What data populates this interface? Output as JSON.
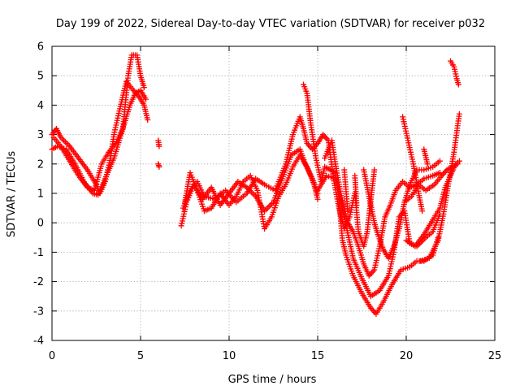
{
  "chart_data": {
    "type": "scatter",
    "title": "Day 199 of 2022, Sidereal Day-to-day VTEC variation (SDTVAR) for receiver p032",
    "xlabel": "GPS time / hours",
    "ylabel": "SDTVAR / TECUs",
    "xlim": [
      0,
      25
    ],
    "ylim": [
      -4,
      6
    ],
    "xticks": [
      "0",
      "5",
      "10",
      "15",
      "20",
      "25"
    ],
    "yticks": [
      "-4",
      "-3",
      "-2",
      "-1",
      "0",
      "1",
      "2",
      "3",
      "4",
      "5",
      "6"
    ],
    "grid": true,
    "marker": "+",
    "color": "#ff0000",
    "traces": [
      [
        [
          0.0,
          3.0
        ],
        [
          0.25,
          3.2
        ],
        [
          0.5,
          2.9
        ],
        [
          1.0,
          2.6
        ],
        [
          1.5,
          2.2
        ],
        [
          2.0,
          1.8
        ],
        [
          2.5,
          1.3
        ],
        [
          2.7,
          1.0
        ],
        [
          3.0,
          1.4
        ],
        [
          3.3,
          2.2
        ],
        [
          3.5,
          3.0
        ],
        [
          3.8,
          3.8
        ],
        [
          4.2,
          4.8
        ],
        [
          4.6,
          4.5
        ],
        [
          4.9,
          4.3
        ],
        [
          5.2,
          4.0
        ],
        [
          5.4,
          3.5
        ]
      ],
      [
        [
          0.0,
          2.5
        ],
        [
          0.3,
          2.6
        ],
        [
          0.8,
          2.5
        ],
        [
          1.3,
          2.0
        ],
        [
          1.8,
          1.4
        ],
        [
          2.3,
          1.0
        ],
        [
          2.6,
          0.95
        ],
        [
          3.0,
          1.5
        ],
        [
          3.5,
          2.2
        ],
        [
          3.8,
          2.8
        ],
        [
          4.1,
          3.4
        ],
        [
          4.4,
          4.0
        ],
        [
          4.7,
          4.4
        ],
        [
          5.0,
          4.5
        ],
        [
          5.3,
          4.2
        ]
      ],
      [
        [
          0.1,
          2.9
        ],
        [
          0.5,
          2.6
        ],
        [
          1.0,
          2.1
        ],
        [
          1.5,
          1.6
        ],
        [
          2.0,
          1.2
        ],
        [
          2.4,
          1.1
        ],
        [
          2.8,
          2.0
        ],
        [
          3.2,
          2.4
        ],
        [
          3.6,
          2.7
        ],
        [
          4.0,
          3.2
        ],
        [
          4.3,
          5.0
        ],
        [
          4.5,
          5.7
        ],
        [
          4.8,
          5.7
        ],
        [
          5.0,
          5.0
        ],
        [
          5.2,
          4.6
        ]
      ],
      [
        [
          6.0,
          2.8
        ],
        [
          6.05,
          2.6
        ]
      ],
      [
        [
          6.0,
          2.0
        ],
        [
          6.05,
          1.9
        ]
      ],
      [
        [
          7.3,
          -0.1
        ],
        [
          7.6,
          0.7
        ],
        [
          8.0,
          1.3
        ],
        [
          8.5,
          0.8
        ],
        [
          9.0,
          1.2
        ],
        [
          9.5,
          0.6
        ],
        [
          10.0,
          1.0
        ],
        [
          10.5,
          1.4
        ],
        [
          11.0,
          1.2
        ],
        [
          11.5,
          0.9
        ],
        [
          12.0,
          0.4
        ],
        [
          12.5,
          0.7
        ],
        [
          13.0,
          1.5
        ],
        [
          13.5,
          2.3
        ],
        [
          14.0,
          2.5
        ],
        [
          14.3,
          2.0
        ],
        [
          14.7,
          1.5
        ],
        [
          15.0,
          1.0
        ]
      ],
      [
        [
          7.5,
          0.7
        ],
        [
          7.8,
          1.7
        ],
        [
          8.2,
          1.1
        ],
        [
          8.6,
          0.4
        ],
        [
          9.0,
          0.5
        ],
        [
          9.5,
          1.0
        ],
        [
          10.0,
          0.6
        ],
        [
          10.4,
          0.9
        ],
        [
          10.8,
          1.4
        ],
        [
          11.2,
          1.6
        ],
        [
          11.6,
          1.1
        ],
        [
          12.0,
          -0.2
        ],
        [
          12.4,
          0.2
        ],
        [
          12.8,
          0.9
        ],
        [
          13.2,
          1.3
        ],
        [
          13.6,
          1.9
        ],
        [
          14.0,
          2.3
        ],
        [
          14.4,
          1.9
        ],
        [
          14.8,
          1.3
        ],
        [
          15.0,
          0.8
        ]
      ],
      [
        [
          7.4,
          0.5
        ],
        [
          7.8,
          1.1
        ],
        [
          8.2,
          1.4
        ],
        [
          8.6,
          0.9
        ],
        [
          9.2,
          0.8
        ],
        [
          9.8,
          1.1
        ],
        [
          10.4,
          0.7
        ],
        [
          11.0,
          1.0
        ],
        [
          11.5,
          1.5
        ],
        [
          12.0,
          1.3
        ],
        [
          12.6,
          1.1
        ],
        [
          13.2,
          2.0
        ],
        [
          13.6,
          3.0
        ],
        [
          14.0,
          3.6
        ],
        [
          14.2,
          3.2
        ],
        [
          14.4,
          2.7
        ],
        [
          14.7,
          2.5
        ],
        [
          15.0,
          2.7
        ],
        [
          15.3,
          3.0
        ],
        [
          15.6,
          2.8
        ],
        [
          15.9,
          1.5
        ],
        [
          16.2,
          0.5
        ],
        [
          16.5,
          -0.2
        ],
        [
          16.8,
          0.2
        ],
        [
          17.1,
          1.0
        ],
        [
          17.3,
          -0.3
        ],
        [
          17.6,
          -0.8
        ],
        [
          17.8,
          -0.3
        ],
        [
          18.0,
          0.8
        ],
        [
          18.2,
          1.8
        ]
      ],
      [
        [
          14.2,
          4.7
        ],
        [
          14.4,
          4.4
        ],
        [
          14.6,
          3.4
        ],
        [
          14.9,
          2.2
        ],
        [
          15.2,
          1.4
        ],
        [
          15.4,
          1.9
        ],
        [
          15.7,
          1.8
        ],
        [
          16.0,
          1.7
        ],
        [
          16.2,
          0.8
        ],
        [
          16.4,
          -0.6
        ],
        [
          16.6,
          -1.1
        ],
        [
          17.0,
          -1.8
        ],
        [
          17.5,
          -2.4
        ],
        [
          18.0,
          -2.9
        ],
        [
          18.3,
          -3.1
        ],
        [
          18.7,
          -2.7
        ],
        [
          19.2,
          -2.1
        ],
        [
          19.7,
          -1.6
        ],
        [
          20.2,
          -1.5
        ],
        [
          20.6,
          -1.3
        ],
        [
          21.0,
          -1.3
        ],
        [
          21.5,
          -1.1
        ],
        [
          21.8,
          -0.5
        ]
      ],
      [
        [
          15.0,
          1.1
        ],
        [
          15.5,
          1.6
        ],
        [
          16.0,
          1.5
        ],
        [
          16.5,
          0.2
        ],
        [
          17.0,
          -1.2
        ],
        [
          17.5,
          -1.9
        ],
        [
          18.0,
          -2.5
        ],
        [
          18.5,
          -2.3
        ],
        [
          19.0,
          -1.8
        ],
        [
          19.3,
          -1.0
        ],
        [
          19.6,
          0.2
        ],
        [
          19.9,
          0.4
        ],
        [
          20.2,
          -0.7
        ],
        [
          20.6,
          -0.8
        ],
        [
          21.1,
          -0.5
        ],
        [
          21.5,
          -0.3
        ],
        [
          21.9,
          0.3
        ]
      ],
      [
        [
          15.4,
          2.2
        ],
        [
          15.8,
          2.8
        ],
        [
          16.0,
          2.0
        ],
        [
          16.3,
          1.0
        ],
        [
          16.7,
          0.0
        ],
        [
          17.0,
          -0.3
        ],
        [
          17.3,
          -0.8
        ],
        [
          17.6,
          -1.4
        ],
        [
          17.9,
          -1.8
        ],
        [
          18.2,
          -1.6
        ],
        [
          18.5,
          -0.8
        ],
        [
          18.8,
          0.2
        ],
        [
          19.1,
          0.6
        ],
        [
          19.4,
          1.1
        ],
        [
          19.8,
          1.4
        ],
        [
          20.2,
          1.2
        ],
        [
          20.6,
          1.3
        ],
        [
          21.0,
          1.5
        ],
        [
          21.5,
          1.6
        ],
        [
          21.9,
          1.7
        ]
      ],
      [
        [
          16.5,
          1.8
        ],
        [
          16.7,
          0.4
        ]
      ],
      [
        [
          17.1,
          1.6
        ],
        [
          17.2,
          0.6
        ]
      ],
      [
        [
          17.6,
          1.8
        ],
        [
          17.8,
          1.2
        ],
        [
          18.0,
          0.6
        ],
        [
          18.2,
          0.0
        ],
        [
          18.4,
          -0.4
        ],
        [
          18.7,
          -0.9
        ],
        [
          19.0,
          -1.2
        ],
        [
          19.3,
          -0.8
        ],
        [
          19.6,
          -0.2
        ],
        [
          19.9,
          0.7
        ],
        [
          20.2,
          1.3
        ],
        [
          20.6,
          1.8
        ],
        [
          21.0,
          1.8
        ],
        [
          21.5,
          1.9
        ],
        [
          21.9,
          2.1
        ]
      ],
      [
        [
          19.8,
          3.6
        ],
        [
          20.1,
          2.8
        ],
        [
          20.4,
          2.0
        ],
        [
          20.7,
          1.0
        ],
        [
          20.9,
          0.4
        ]
      ],
      [
        [
          21.0,
          2.5
        ],
        [
          21.2,
          2.0
        ]
      ],
      [
        [
          19.9,
          0.7
        ],
        [
          20.3,
          0.9
        ],
        [
          20.7,
          1.3
        ],
        [
          21.1,
          1.1
        ],
        [
          21.6,
          1.3
        ],
        [
          22.0,
          1.6
        ],
        [
          22.3,
          1.8
        ],
        [
          22.6,
          1.9
        ],
        [
          22.9,
          2.0
        ]
      ],
      [
        [
          20.0,
          -0.6
        ],
        [
          20.5,
          -0.8
        ],
        [
          21.0,
          -0.4
        ],
        [
          21.5,
          0.1
        ],
        [
          21.9,
          0.5
        ],
        [
          22.2,
          1.2
        ],
        [
          22.5,
          1.6
        ],
        [
          22.8,
          2.0
        ],
        [
          23.0,
          2.1
        ]
      ],
      [
        [
          20.8,
          -1.3
        ],
        [
          21.3,
          -1.2
        ],
        [
          21.8,
          -0.6
        ],
        [
          22.1,
          0.3
        ],
        [
          22.4,
          1.4
        ],
        [
          22.7,
          2.4
        ],
        [
          22.9,
          3.3
        ],
        [
          23.0,
          3.7
        ]
      ],
      [
        [
          22.5,
          5.5
        ],
        [
          22.7,
          5.3
        ],
        [
          22.85,
          4.9
        ],
        [
          22.95,
          4.7
        ]
      ]
    ]
  }
}
